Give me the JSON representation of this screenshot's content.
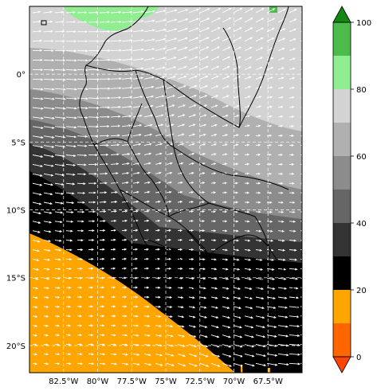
{
  "map": {
    "lon_ticks": [
      "82.5°W",
      "80°W",
      "77.5°W",
      "75°W",
      "72.5°W",
      "70°W",
      "67.5°W"
    ],
    "lat_ticks": [
      "0°",
      "5°S",
      "10°S",
      "15°S",
      "20°S"
    ],
    "extent": {
      "lon_min": -85.0,
      "lon_max": -65.0,
      "lat_min": -22.0,
      "lat_max": 5.0
    },
    "gridlines": true
  },
  "colorbar": {
    "ticks": [
      "0",
      "20",
      "40",
      "60",
      "80",
      "100"
    ],
    "levels": [
      0,
      10,
      20,
      30,
      40,
      50,
      60,
      70,
      80,
      90,
      100
    ],
    "colors": [
      "#ff6600",
      "#ffa500",
      "#000000",
      "#333333",
      "#666666",
      "#8c8c8c",
      "#b0b0b0",
      "#d3d3d3",
      "#90ee90",
      "#4cbb4c"
    ],
    "under_color": "#ff4500",
    "over_color": "#118811"
  }
}
